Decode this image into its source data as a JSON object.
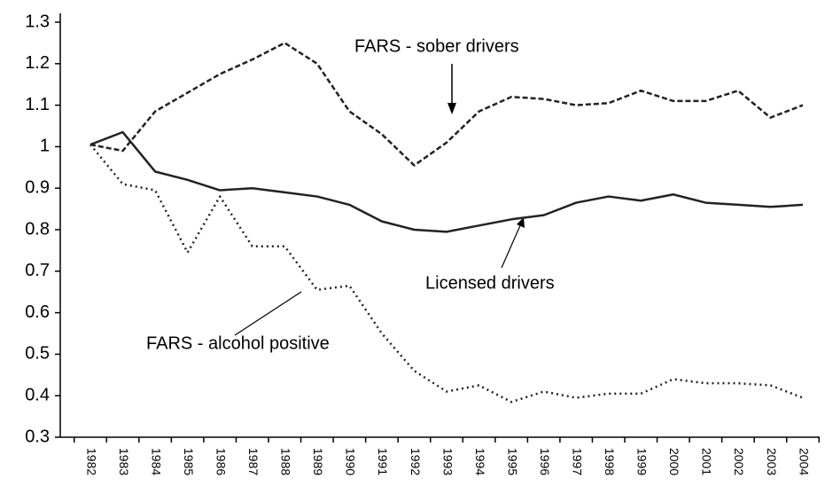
{
  "chart_data": {
    "type": "line",
    "categories": [
      "1982",
      "1983",
      "1984",
      "1985",
      "1986",
      "1987",
      "1988",
      "1989",
      "1990",
      "1991",
      "1992",
      "1993",
      "1994",
      "1995",
      "1996",
      "1997",
      "1998",
      "1999",
      "2000",
      "2001",
      "2002",
      "2003",
      "2004"
    ],
    "series": [
      {
        "name": "FARS - sober drivers",
        "color": "#222222",
        "dash": "dashed",
        "values": [
          1.005,
          0.99,
          1.085,
          1.13,
          1.175,
          1.21,
          1.25,
          1.2,
          1.085,
          1.03,
          0.955,
          1.01,
          1.085,
          1.12,
          1.115,
          1.1,
          1.105,
          1.135,
          1.11,
          1.11,
          1.135,
          1.07,
          1.1
        ]
      },
      {
        "name": "Licensed drivers",
        "color": "#222222",
        "dash": "solid",
        "values": [
          1.005,
          1.035,
          0.94,
          0.92,
          0.895,
          0.9,
          0.89,
          0.88,
          0.86,
          0.82,
          0.8,
          0.795,
          0.81,
          0.825,
          0.835,
          0.865,
          0.88,
          0.87,
          0.885,
          0.865,
          0.86,
          0.855,
          0.86
        ]
      },
      {
        "name": "FARS - alcohol positive",
        "color": "#222222",
        "dash": "dotted",
        "values": [
          1.005,
          0.91,
          0.895,
          0.745,
          0.88,
          0.76,
          0.76,
          0.655,
          0.665,
          0.55,
          0.46,
          0.41,
          0.425,
          0.385,
          0.41,
          0.395,
          0.405,
          0.405,
          0.44,
          0.43,
          0.43,
          0.425,
          0.395
        ]
      }
    ],
    "ylim": [
      0.3,
      1.3
    ],
    "yticks": [
      0.3,
      0.4,
      0.5,
      0.6,
      0.7,
      0.8,
      0.9,
      1,
      1.1,
      1.2,
      1.3
    ],
    "grid": false
  }
}
